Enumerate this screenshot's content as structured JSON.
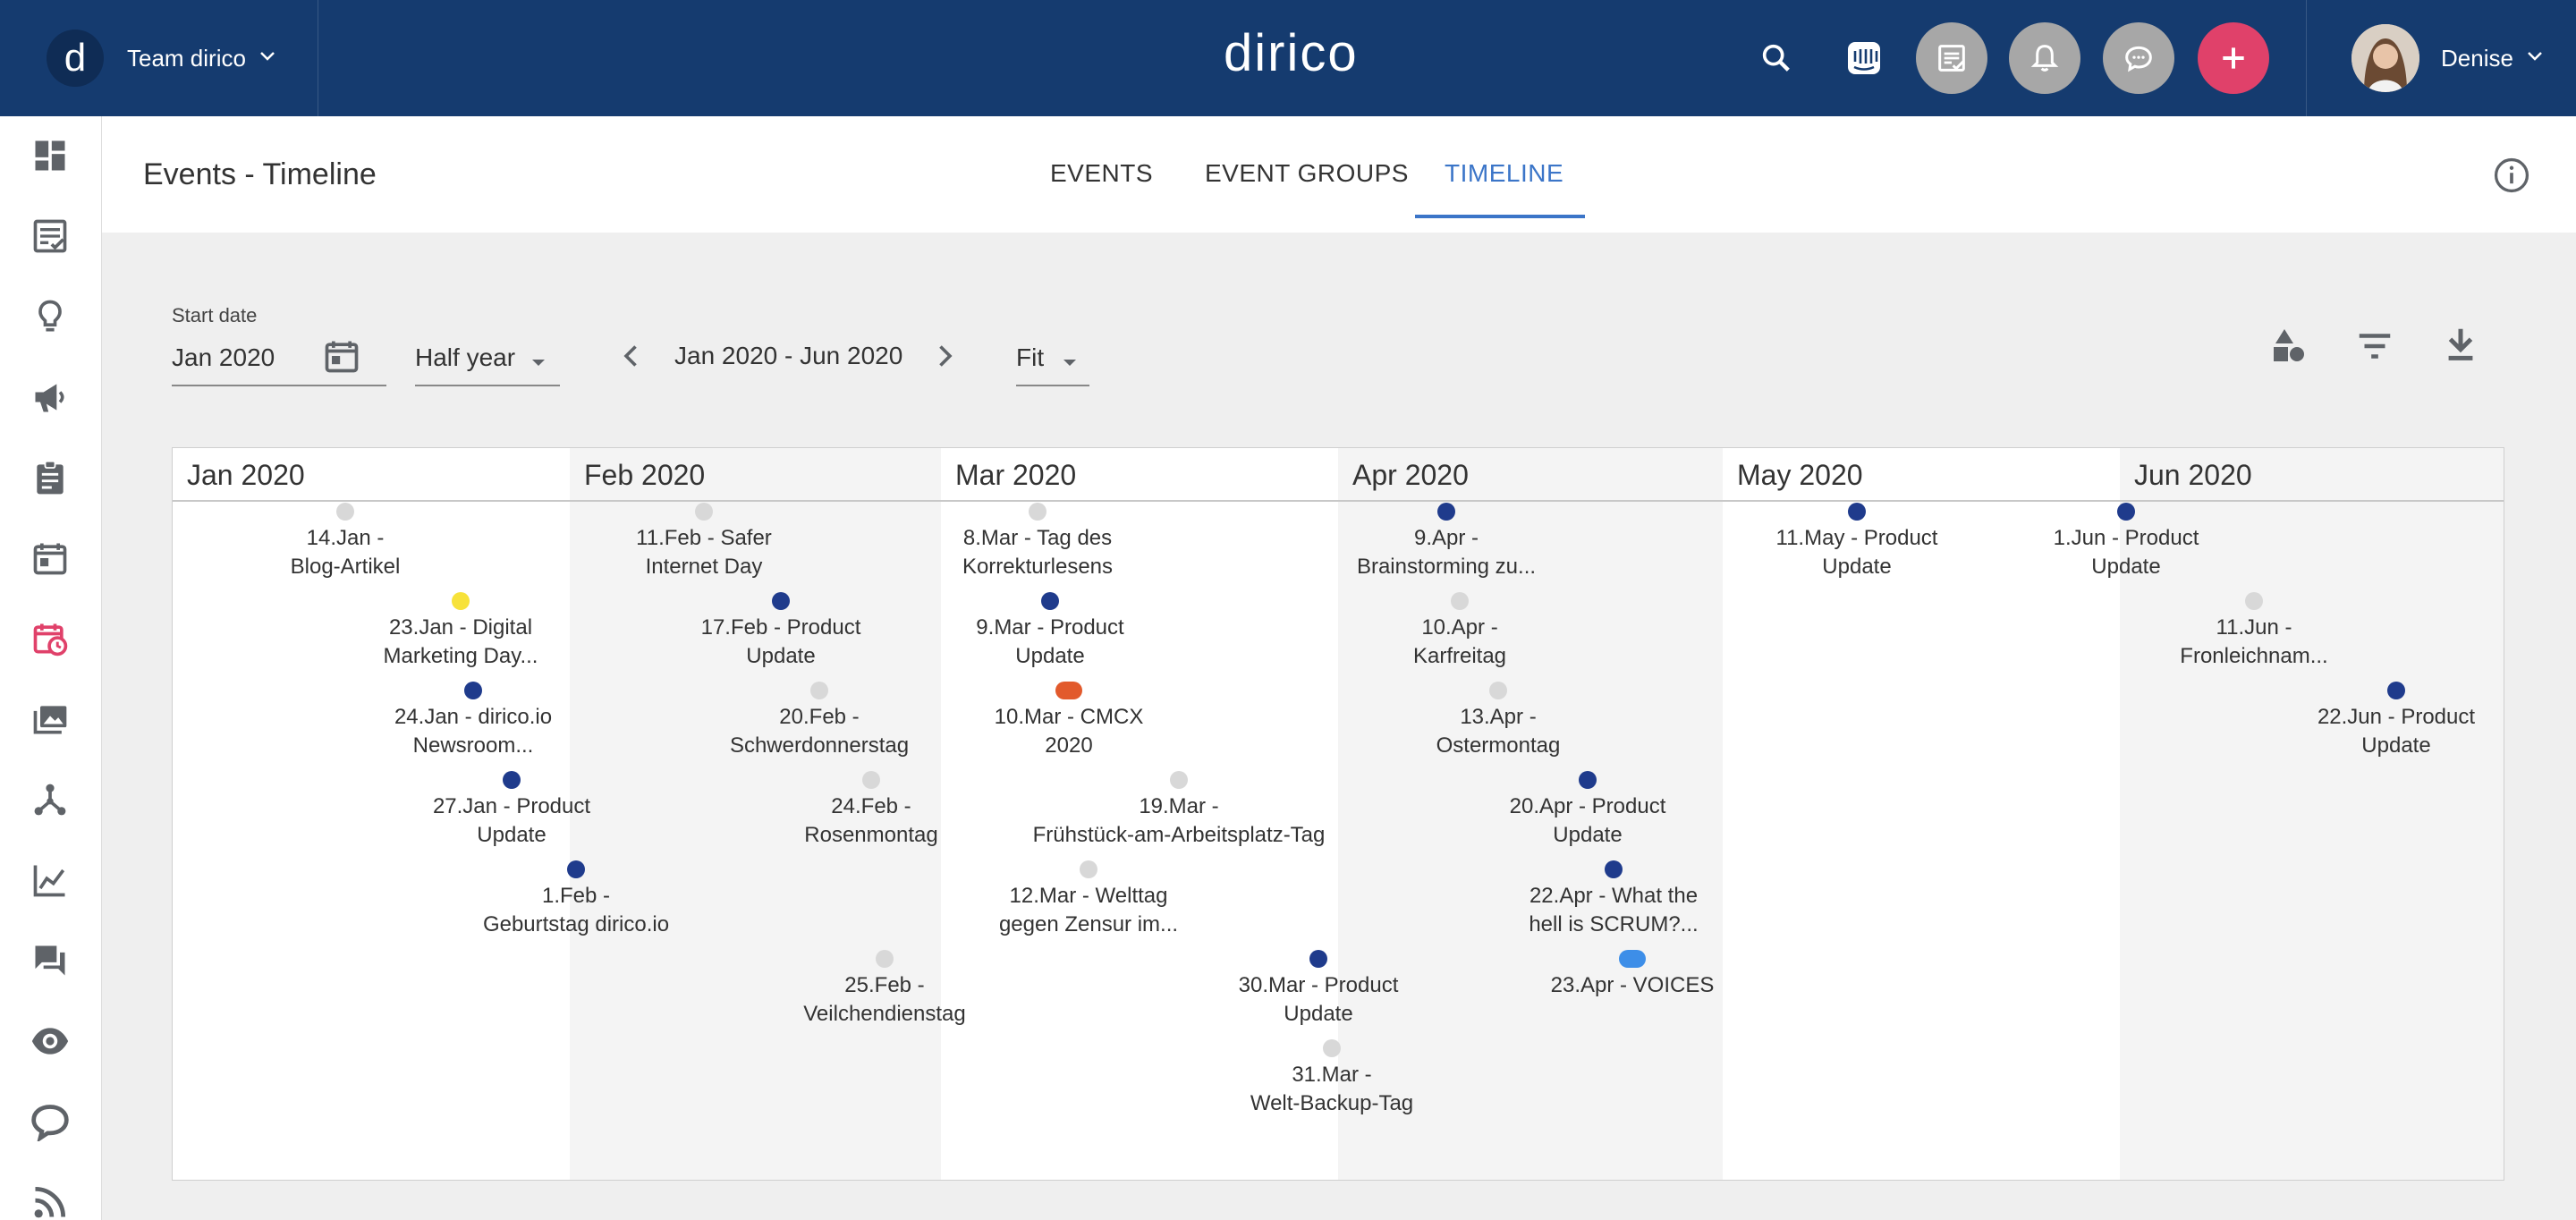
{
  "topbar": {
    "logo_letter": "d",
    "team_name": "Team dirico",
    "brand": "dirico",
    "user_name": "Denise",
    "icons": [
      "search-icon",
      "intercom-icon",
      "tasks-icon",
      "bell-icon",
      "chat-icon",
      "add-icon",
      "chevron-down-icon"
    ]
  },
  "sidebar": {
    "items": [
      "dashboard-icon",
      "tasks-icon",
      "ideas-icon",
      "campaigns-icon",
      "briefing-icon",
      "calendar-icon",
      "events-icon",
      "media-icon",
      "network-icon",
      "analytics-icon",
      "messages-icon",
      "monitoring-icon",
      "social-icon",
      "rss-icon"
    ],
    "active": "events-icon"
  },
  "header": {
    "title": "Events - Timeline",
    "tabs": [
      {
        "label": "EVENTS",
        "active": false
      },
      {
        "label": "EVENT GROUPS",
        "active": false
      },
      {
        "label": "TIMELINE",
        "active": true
      }
    ]
  },
  "controls": {
    "start_date_label": "Start date",
    "start_date_value": "Jan 2020",
    "period_value": "Half year",
    "range_label": "Jan 2020 - Jun 2020",
    "zoom_value": "Fit",
    "action_icons": [
      "shapes-icon",
      "filter-icon",
      "download-icon"
    ]
  },
  "colors": {
    "accent": "#3b75c8",
    "topbar": "#153b6f",
    "navy": "#1f3b8c",
    "grey": "#d8d8d8",
    "yellow": "#f7e23a",
    "orange": "#e25a2c",
    "lightblue": "#3d8ee8",
    "add_button": "#e0416a"
  },
  "timeline": {
    "months": [
      "Jan 2020",
      "Feb 2020",
      "Mar 2020",
      "Apr 2020",
      "May 2020",
      "Jun 2020"
    ],
    "events": [
      {
        "label": "14.Jan -\nBlog-Artikel",
        "color": "grey"
      },
      {
        "label": "23.Jan - Digital\nMarketing Day...",
        "color": "yellow"
      },
      {
        "label": "24.Jan - dirico.io\nNewsroom...",
        "color": "navy"
      },
      {
        "label": "27.Jan - Product\nUpdate",
        "color": "navy"
      },
      {
        "label": "1.Feb -\nGeburtstag dirico.io",
        "color": "navy"
      },
      {
        "label": "11.Feb - Safer\nInternet Day",
        "color": "grey"
      },
      {
        "label": "17.Feb - Product\nUpdate",
        "color": "navy"
      },
      {
        "label": "20.Feb -\nSchwerdonnerstag",
        "color": "grey"
      },
      {
        "label": "24.Feb -\nRosenmontag",
        "color": "grey"
      },
      {
        "label": "25.Feb -\nVeilchendienstag",
        "color": "grey"
      },
      {
        "label": "8.Mar - Tag des\nKorrekturlesens",
        "color": "grey"
      },
      {
        "label": "9.Mar - Product\nUpdate",
        "color": "navy"
      },
      {
        "label": "10.Mar - CMCX\n2020",
        "color": "orange"
      },
      {
        "label": "19.Mar -\nFrühstück-am-Arbeitsplatz-Tag",
        "color": "grey"
      },
      {
        "label": "12.Mar - Welttag\ngegen Zensur im...",
        "color": "grey"
      },
      {
        "label": "30.Mar - Product\nUpdate",
        "color": "navy"
      },
      {
        "label": "31.Mar -\nWelt-Backup-Tag",
        "color": "grey"
      },
      {
        "label": "9.Apr -\nBrainstorming zu...",
        "color": "navy"
      },
      {
        "label": "10.Apr -\nKarfreitag",
        "color": "grey"
      },
      {
        "label": "13.Apr -\nOstermontag",
        "color": "grey"
      },
      {
        "label": "20.Apr - Product\nUpdate",
        "color": "navy"
      },
      {
        "label": "22.Apr - What the\nhell is SCRUM?...",
        "color": "navy"
      },
      {
        "label": "23.Apr - VOICES",
        "color": "lightblue"
      },
      {
        "label": "11.May - Product\nUpdate",
        "color": "navy"
      },
      {
        "label": "1.Jun - Product\nUpdate",
        "color": "navy"
      },
      {
        "label": "11.Jun -\nFronleichnam...",
        "color": "grey"
      },
      {
        "label": "22.Jun - Product\nUpdate",
        "color": "navy"
      }
    ]
  }
}
